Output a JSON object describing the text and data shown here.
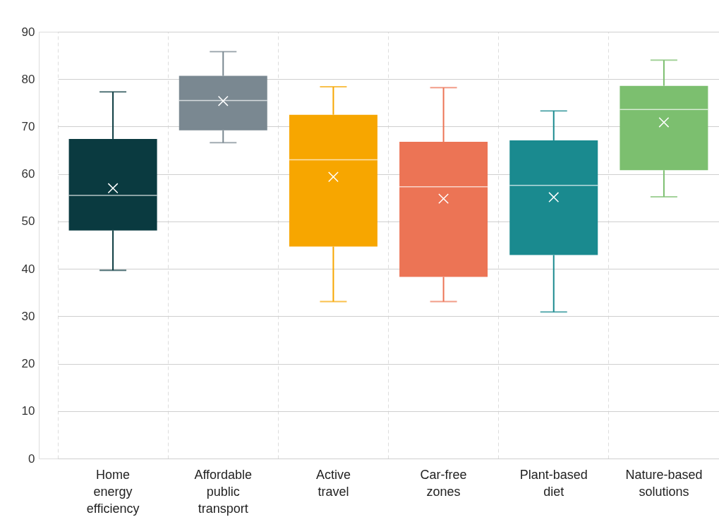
{
  "chart_data": {
    "type": "box",
    "categories": [
      "Home energy efficiency",
      "Affordable public transport",
      "Active travel",
      "Car-free zones",
      "Plant-based diet",
      "Nature-based solutions"
    ],
    "boxes": [
      {
        "low": 39.7,
        "q1": 48.1,
        "median": 55.5,
        "q3": 67.4,
        "high": 77.3,
        "mean": 57.0
      },
      {
        "low": 66.6,
        "q1": 69.2,
        "median": 75.5,
        "q3": 80.7,
        "high": 85.8,
        "mean": 75.4
      },
      {
        "low": 33.1,
        "q1": 44.7,
        "median": 63.0,
        "q3": 72.5,
        "high": 78.4,
        "mean": 59.4
      },
      {
        "low": 33.1,
        "q1": 38.3,
        "median": 57.3,
        "q3": 66.8,
        "high": 78.2,
        "mean": 54.8
      },
      {
        "low": 30.9,
        "q1": 42.9,
        "median": 57.6,
        "q3": 67.1,
        "high": 73.3,
        "mean": 55.1
      },
      {
        "low": 55.2,
        "q1": 60.8,
        "median": 73.6,
        "q3": 78.6,
        "high": 84.0,
        "mean": 70.9
      }
    ],
    "colors": [
      "#0a3a40",
      "#7a8891",
      "#f7a600",
      "#ec7455",
      "#1a8a8f",
      "#7cbf6f"
    ],
    "ylim": [
      0,
      90
    ],
    "yticks": [
      0,
      10,
      20,
      30,
      40,
      50,
      60,
      70,
      80,
      90
    ],
    "grid": true,
    "legend": false
  }
}
